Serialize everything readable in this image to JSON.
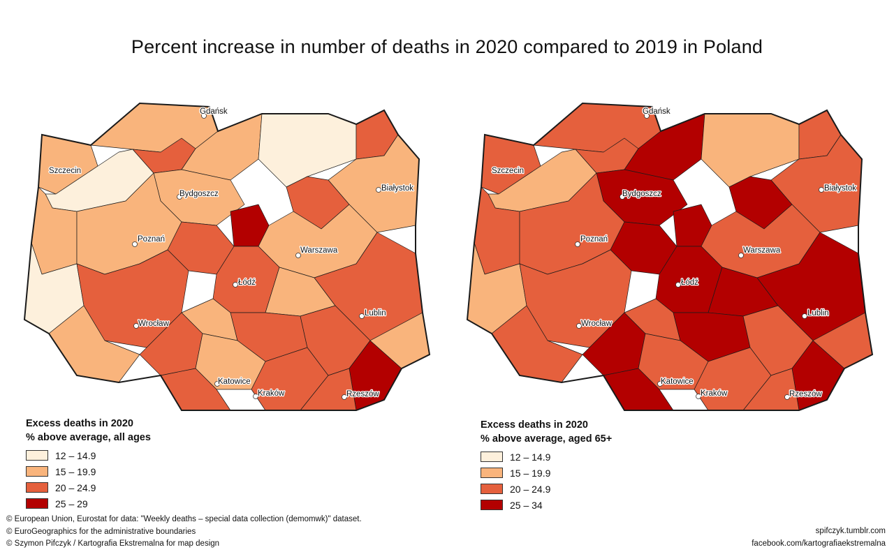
{
  "title": "Percent increase in number of deaths in 2020 compared to 2019 in Poland",
  "colors": {
    "class_1": "#fdf0dc",
    "class_2": "#f9b47c",
    "class_3": "#e5603d",
    "class_4": "#b30000",
    "border": "#1a1a1a",
    "sea": "#ffffff"
  },
  "cities": [
    "Gdańsk",
    "Szczecin",
    "Bydgoszcz",
    "Białystok",
    "Poznań",
    "Warszawa",
    "Łódź",
    "Wrocław",
    "Lublin",
    "Katowice",
    "Kraków",
    "Rzeszów"
  ],
  "maps": [
    {
      "legend": {
        "title": "Excess deaths in 2020",
        "subtitle": "% above average, all ages",
        "items": [
          {
            "label": "12 – 14.9",
            "color": "#fdf0dc"
          },
          {
            "label": "15 – 19.9",
            "color": "#f9b47c"
          },
          {
            "label": "20 – 24.9",
            "color": "#e5603d"
          },
          {
            "label": "25 – 29",
            "color": "#b30000"
          }
        ]
      }
    },
    {
      "legend": {
        "title": "Excess deaths in 2020",
        "subtitle": "% above average, aged 65+",
        "items": [
          {
            "label": "12 – 14.9",
            "color": "#fdf0dc"
          },
          {
            "label": "15 – 19.9",
            "color": "#f9b47c"
          },
          {
            "label": "20 – 24.9",
            "color": "#e5603d"
          },
          {
            "label": "25 – 34",
            "color": "#b30000"
          }
        ]
      }
    }
  ],
  "credits": [
    "© European Union, Eurostat for data: \"Weekly deaths – special data collection (demomwk)\" dataset.",
    "© EuroGeographics for the administrative boundaries",
    "© Szymon Pifczyk / Kartografia Ekstremalna for map design"
  ],
  "social": [
    "spifczyk.tumblr.com",
    "facebook.com/kartografiaekstremalna"
  ]
}
